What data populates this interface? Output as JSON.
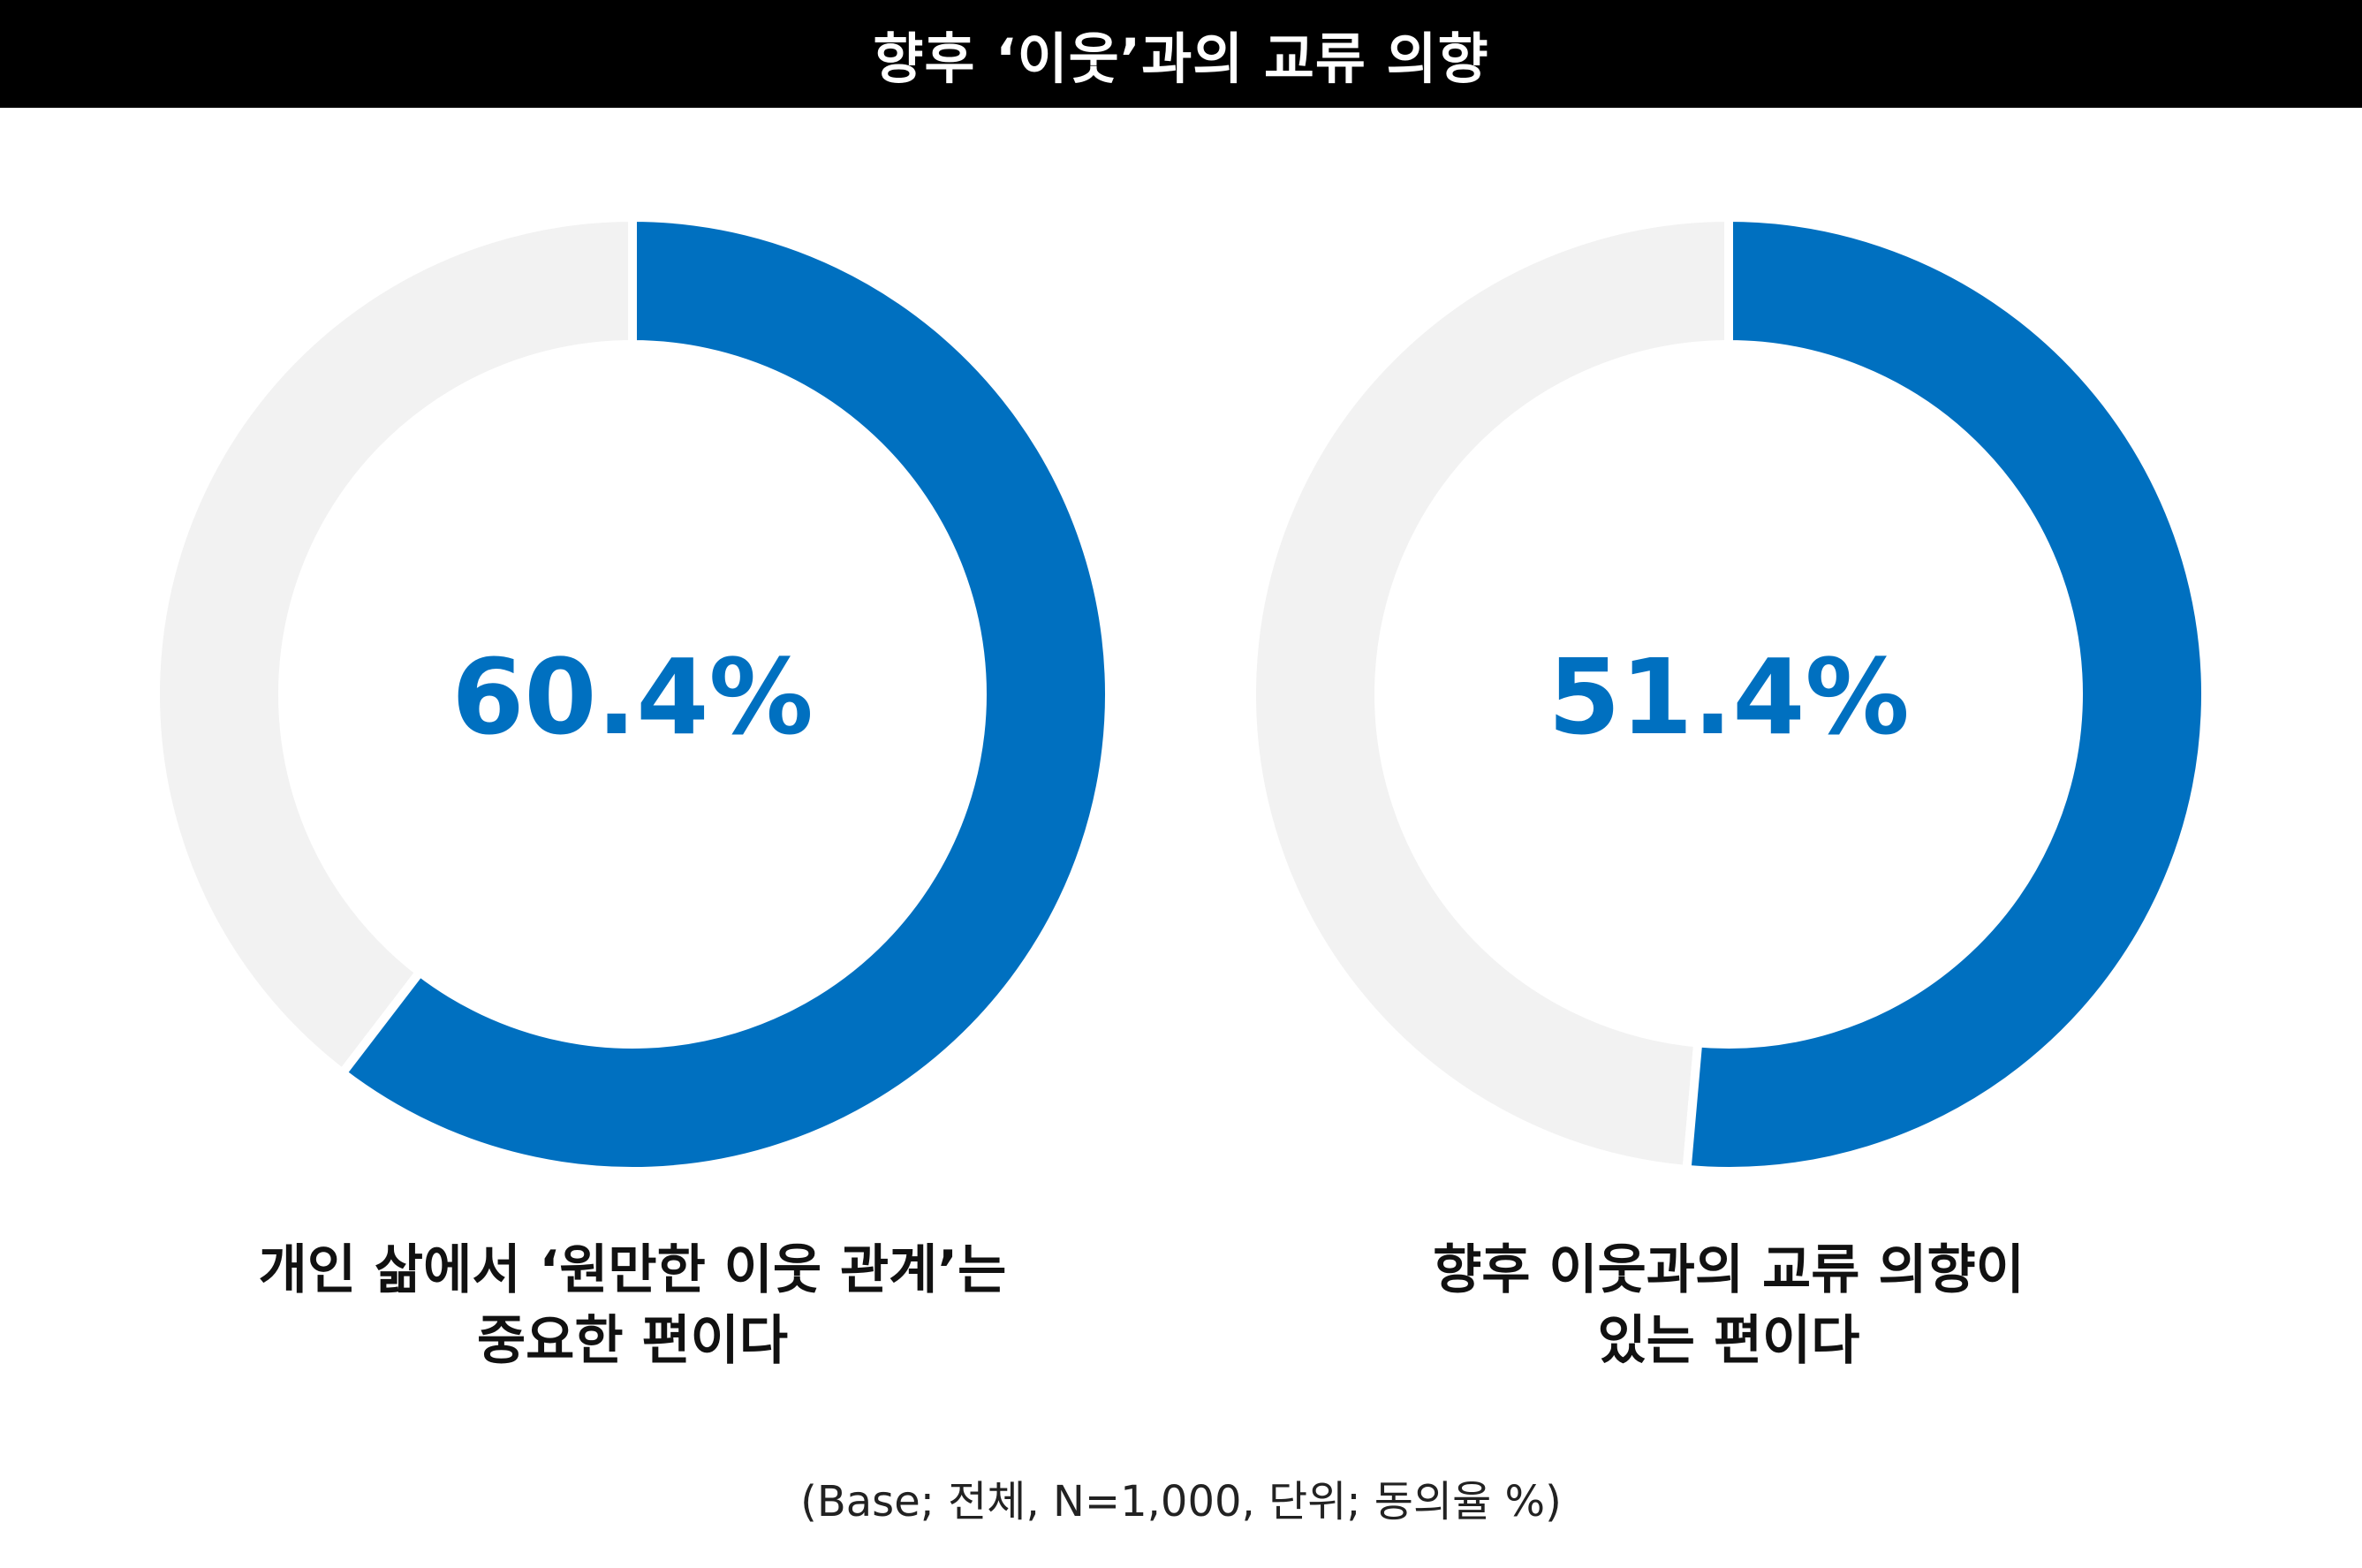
{
  "title": "향후 ‘이웃’과의 교류 의향",
  "colors": {
    "title_bg": "#000000",
    "title_text": "#ffffff",
    "accent": "#0070C0",
    "remainder": "#F2F2F2",
    "separator": "#FFFFFF"
  },
  "chart_data": [
    {
      "type": "pie",
      "variant": "donut",
      "value": 60.4,
      "value_label": "60.4%",
      "caption_lines": [
        "개인 삶에서 ‘원만한 이웃 관계’는",
        "중요한 편이다"
      ]
    },
    {
      "type": "pie",
      "variant": "donut",
      "value": 51.4,
      "value_label": "51.4%",
      "caption_lines": [
        "향후 이웃과의 교류 의향이",
        "있는 편이다"
      ]
    }
  ],
  "note": "(Base; 전체, N=1,000, 단위; 동의율 %)"
}
